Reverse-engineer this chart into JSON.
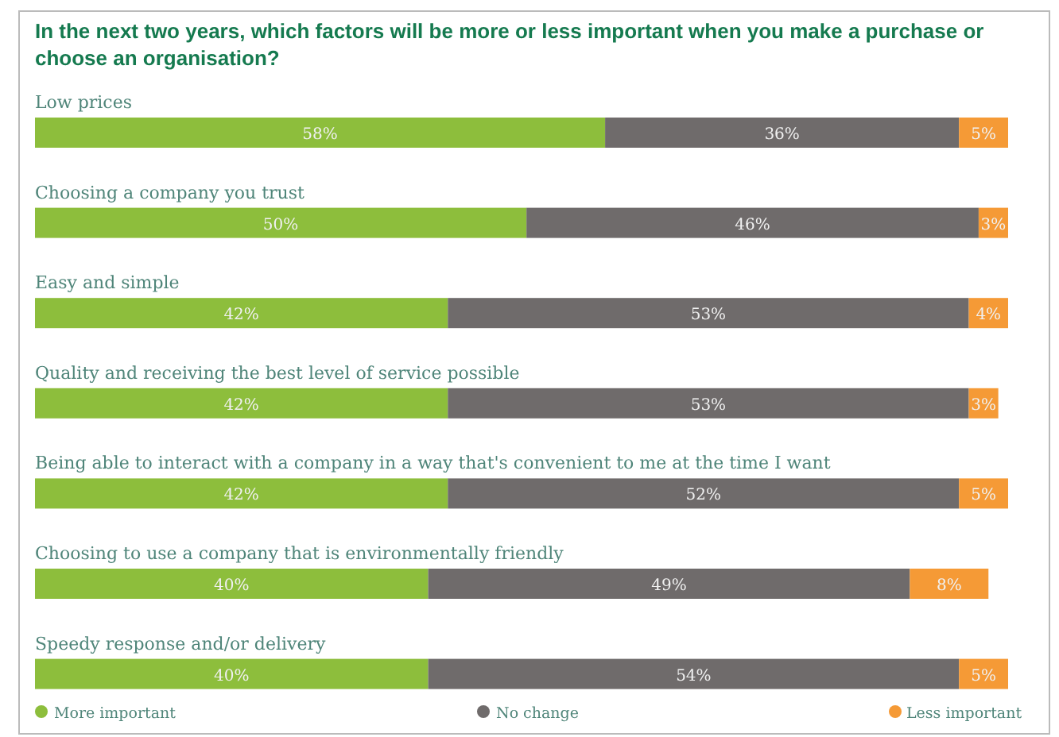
{
  "chart_data": {
    "type": "bar",
    "orientation": "horizontal",
    "stacked": true,
    "title": "In the next two years, which factors will be more or less important when you make a purchase or choose an organisation?",
    "categories": [
      "Low prices",
      "Choosing a company you trust",
      "Easy and simple",
      "Quality and receiving the best level of service possible",
      "Being able to interact with a company in a way that's convenient to me at the time I want",
      "Choosing to use a company that is environmentally friendly",
      "Speedy response and/or delivery"
    ],
    "series": [
      {
        "name": "More important",
        "color": "#8dbe3c",
        "values": [
          58,
          50,
          42,
          42,
          42,
          40,
          40
        ],
        "value_labels": [
          "58%",
          "50%",
          "42%",
          "42%",
          "42%",
          "40%",
          "40%"
        ]
      },
      {
        "name": "No change",
        "color": "#6f6b6b",
        "values": [
          36,
          46,
          53,
          53,
          52,
          49,
          54
        ],
        "value_labels": [
          "36%",
          "46%",
          "53%",
          "53%",
          "52%",
          "49%",
          "54%"
        ]
      },
      {
        "name": "Less important",
        "color": "#f59a36",
        "values": [
          5,
          3,
          4,
          3,
          5,
          8,
          5
        ],
        "value_labels": [
          "5%",
          "3%",
          "4%",
          "3%",
          "5%",
          "8%",
          "5%"
        ]
      }
    ],
    "legend": "bottom"
  }
}
